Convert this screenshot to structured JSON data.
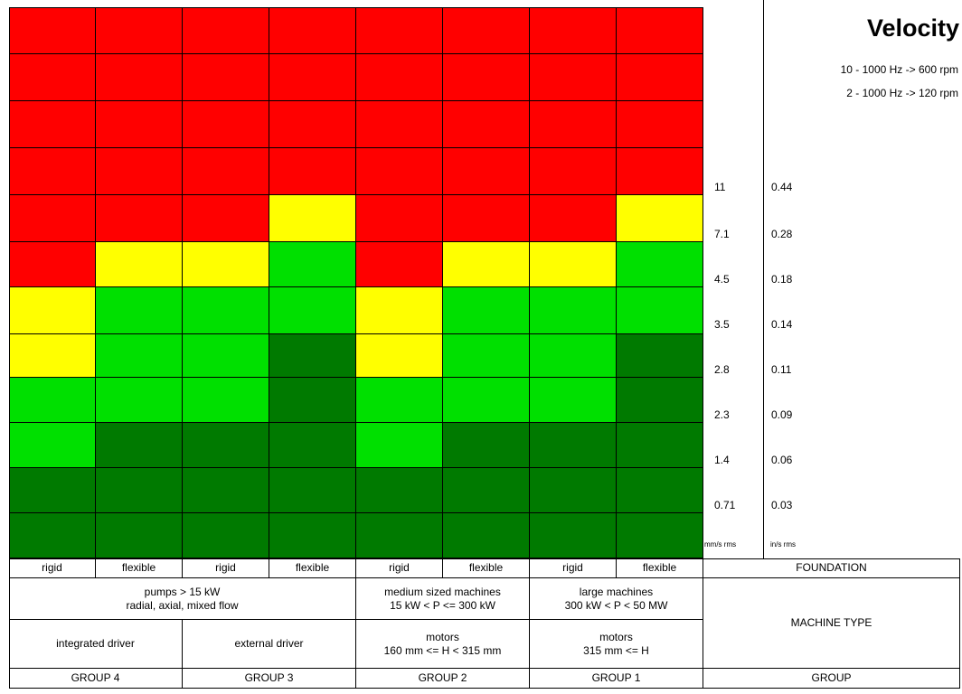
{
  "chart_data": {
    "type": "heatmap",
    "title": "Velocity",
    "subtitles": [
      "10 - 1000 Hz -> 600 rpm",
      "2 - 1000 Hz -> 120 rpm"
    ],
    "columns": [
      "rigid",
      "flexible",
      "rigid",
      "flexible",
      "rigid",
      "flexible",
      "rigid",
      "flexible"
    ],
    "row_thresholds_mm_s": [
      "11",
      "7.1",
      "4.5",
      "3.5",
      "2.8",
      "2.3",
      "1.4",
      "0.71"
    ],
    "row_thresholds_in_s": [
      "0.44",
      "0.28",
      "0.18",
      "0.14",
      "0.11",
      "0.09",
      "0.06",
      "0.03"
    ],
    "colors": {
      "R": "#ff0000",
      "Y": "#ffff00",
      "G": "#00e000",
      "D": "#007a00"
    },
    "zones": [
      [
        "R",
        "R",
        "R",
        "R",
        "R",
        "R",
        "R",
        "R"
      ],
      [
        "R",
        "R",
        "R",
        "R",
        "R",
        "R",
        "R",
        "R"
      ],
      [
        "R",
        "R",
        "R",
        "R",
        "R",
        "R",
        "R",
        "R"
      ],
      [
        "R",
        "R",
        "R",
        "R",
        "R",
        "R",
        "R",
        "R"
      ],
      [
        "R",
        "R",
        "R",
        "Y",
        "R",
        "R",
        "R",
        "Y"
      ],
      [
        "R",
        "Y",
        "Y",
        "G",
        "R",
        "Y",
        "Y",
        "G"
      ],
      [
        "Y",
        "G",
        "G",
        "G",
        "Y",
        "G",
        "G",
        "G"
      ],
      [
        "Y",
        "G",
        "G",
        "D",
        "Y",
        "G",
        "G",
        "D"
      ],
      [
        "G",
        "G",
        "G",
        "D",
        "G",
        "G",
        "G",
        "D"
      ],
      [
        "G",
        "D",
        "D",
        "D",
        "G",
        "D",
        "D",
        "D"
      ],
      [
        "D",
        "D",
        "D",
        "D",
        "D",
        "D",
        "D",
        "D"
      ],
      [
        "D",
        "D",
        "D",
        "D",
        "D",
        "D",
        "D",
        "D"
      ]
    ]
  },
  "axis": {
    "left_values": [
      "11",
      "7.1",
      "4.5",
      "3.5",
      "2.8",
      "2.3",
      "1.4",
      "0.71"
    ],
    "right_values": [
      "0.44",
      "0.28",
      "0.18",
      "0.14",
      "0.11",
      "0.09",
      "0.06",
      "0.03"
    ],
    "left_unit": "mm/s rms",
    "right_unit": "in/s rms"
  },
  "table": {
    "foundation_label": "FOUNDATION",
    "machine_type_label": "MACHINE TYPE",
    "group_label": "GROUP",
    "foundation": [
      "rigid",
      "flexible",
      "rigid",
      "flexible",
      "rigid",
      "flexible",
      "rigid",
      "flexible"
    ],
    "machine_types": [
      {
        "line1": "pumps > 15 kW",
        "line2": "radial, axial, mixed flow"
      },
      {
        "line1": "medium sized machines",
        "line2": "15 kW < P <= 300 kW"
      },
      {
        "line1": "large machines",
        "line2": "300 kW < P < 50 MW"
      }
    ],
    "drivers": [
      {
        "line1": "integrated driver",
        "line2": ""
      },
      {
        "line1": "external driver",
        "line2": ""
      },
      {
        "line1": "motors",
        "line2": "160 mm <= H < 315 mm"
      },
      {
        "line1": "motors",
        "line2": "315 mm <= H"
      }
    ],
    "groups": [
      "GROUP 4",
      "GROUP 3",
      "GROUP 2",
      "GROUP 1"
    ]
  }
}
